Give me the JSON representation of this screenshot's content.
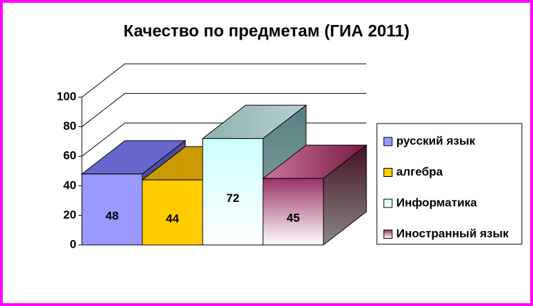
{
  "chart_data": {
    "type": "bar3d",
    "title": "Качество по предметам (ГИА 2011)",
    "series": [
      {
        "name": "русский язык",
        "color": "#9999ff",
        "values": [
          48
        ]
      },
      {
        "name": "алгебра",
        "color": "#ffcc00",
        "values": [
          44
        ]
      },
      {
        "name": "Информатика",
        "color": "#e0ffff",
        "values": [
          72
        ]
      },
      {
        "name": "Иностранный язык",
        "color": "#993366",
        "values": [
          45
        ]
      }
    ],
    "ylim": [
      0,
      100
    ],
    "yticks": [
      0,
      20,
      40,
      60,
      80,
      100
    ],
    "grid": true,
    "legend": "right"
  }
}
